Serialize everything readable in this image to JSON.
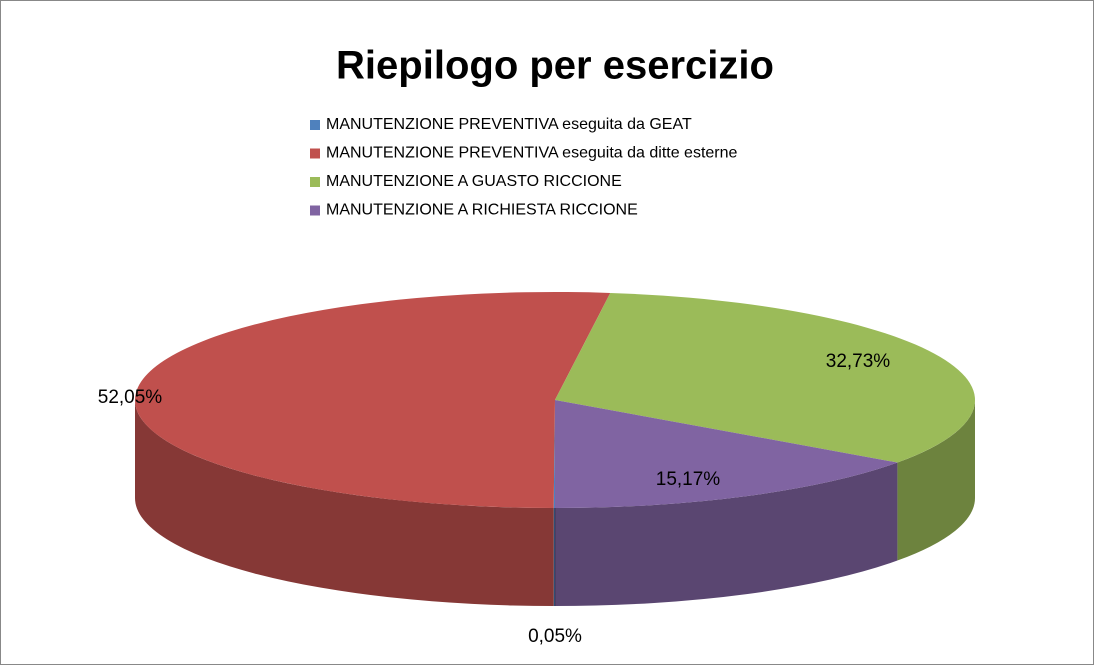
{
  "chart_data": {
    "type": "pie3d",
    "title": "Riepilogo per esercizio",
    "categories": [
      "MANUTENZIONE PREVENTIVA eseguita da GEAT",
      "MANUTENZIONE PREVENTIVA eseguita da ditte esterne",
      "MANUTENZIONE A GUASTO RICCIONE",
      "MANUTENZIONE A RICHIESTA RICCIONE"
    ],
    "values": [
      0.05,
      52.05,
      32.73,
      15.17
    ],
    "value_labels": [
      "0,05%",
      "52,05%",
      "32,73%",
      "15,17%"
    ],
    "colors": [
      "#4f81bd",
      "#c0504d",
      "#9bbb59",
      "#8064a2"
    ],
    "legend": "top"
  }
}
